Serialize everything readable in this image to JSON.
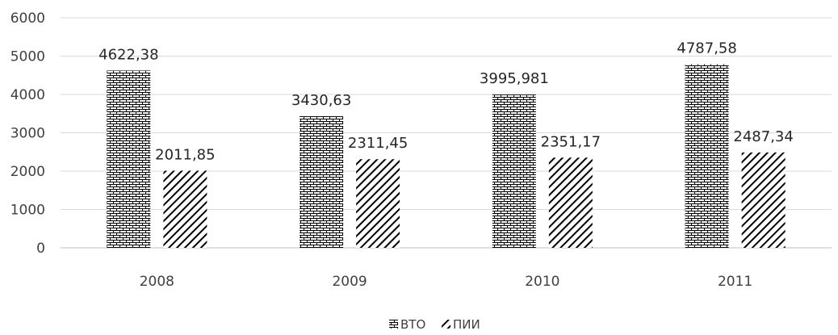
{
  "chart_data": {
    "type": "bar",
    "categories": [
      "2008",
      "2009",
      "2010",
      "2011"
    ],
    "series": [
      {
        "name": "ВТО",
        "pattern": "brick",
        "values": [
          4622.38,
          3430.63,
          3995.981,
          4787.58
        ],
        "labels": [
          "4622,38",
          "3430,63",
          "3995,981",
          "4787,58"
        ]
      },
      {
        "name": "ПИИ",
        "pattern": "diagonal",
        "values": [
          2011.85,
          2311.45,
          2351.17,
          2487.34
        ],
        "labels": [
          "2011,85",
          "2311,45",
          "2351,17",
          "2487,34"
        ]
      }
    ],
    "yticks": [
      "0",
      "1000",
      "2000",
      "3000",
      "4000",
      "5000",
      "6000"
    ],
    "ylim": [
      0,
      6000
    ],
    "grid": true,
    "legend": "bottom-center",
    "title": "",
    "xlabel": "",
    "ylabel": ""
  }
}
